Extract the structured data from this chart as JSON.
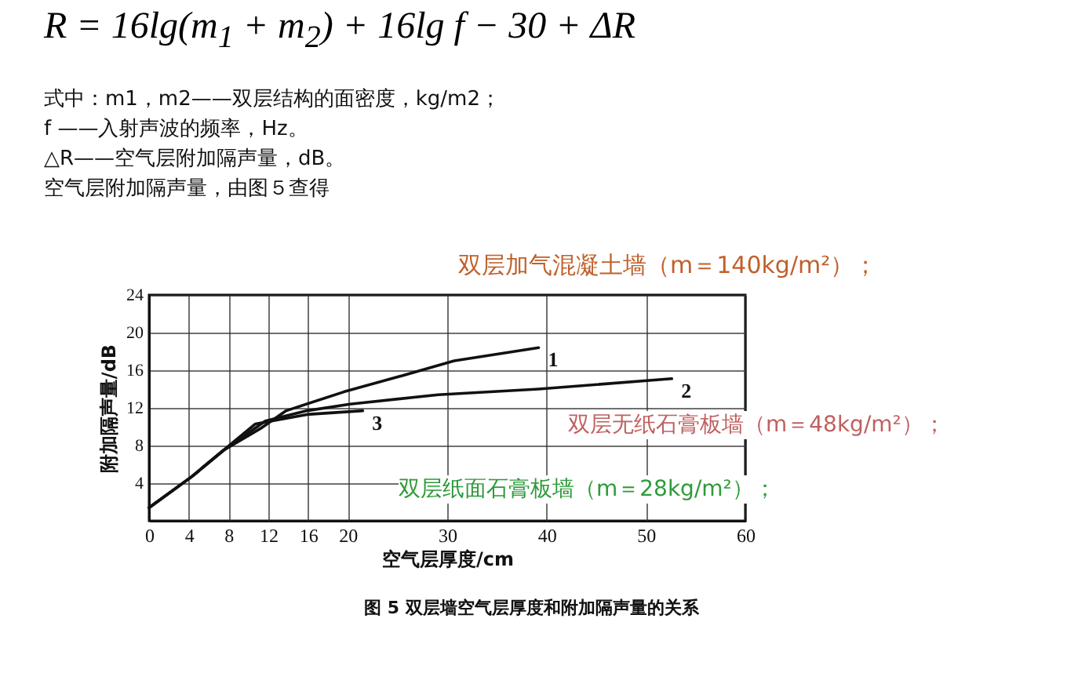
{
  "chart_data": {
    "type": "line",
    "title": "R = 16lg(m$_{1}$ + m$_{2}$) + 16lg f − 30 + ΔR",
    "xlabel": "空气层厚度/cm",
    "ylabel": "附加隔声量/dB",
    "annotations": [
      "式中：m1，m2——双层结构的面密度，kg/m2；",
      "f ——入射声波的频率，Hz。",
      "△R——空气层附加隔声量，dB。",
      "空气层附加隔声量，由图５查得",
      "双层加气混凝土墙（m＝140kg/m²）；",
      "双层无纸石膏板墙（m＝48kg/m²）；",
      "双层纸面石膏板墙（m＝28kg/m²）；",
      "图 5  双层墙空气层厚度和附加隔声量的关系"
    ],
    "series": [
      {
        "name": "1",
        "color": "#111111",
        "x": [
          0,
          4.3,
          7.5,
          11.2,
          13.8,
          19.6,
          25.4,
          30.7,
          39.2
        ],
        "values": [
          1.4,
          4.7,
          7.5,
          9.8,
          11.7,
          13.7,
          15.4,
          17.0,
          18.4
        ]
      },
      {
        "name": "2",
        "color": "#111111",
        "x": [
          0,
          4.3,
          7.5,
          11.7,
          15.9,
          20.2,
          29.1,
          39.2,
          52.6
        ],
        "values": [
          1.4,
          4.7,
          7.5,
          10.6,
          11.7,
          12.4,
          13.4,
          14.0,
          15.1
        ]
      },
      {
        "name": "3",
        "color": "#111111",
        "x": [
          0,
          4.3,
          7.5,
          10.7,
          15.9,
          21.5
        ],
        "values": [
          1.4,
          4.7,
          7.5,
          10.3,
          11.3,
          11.7
        ]
      }
    ],
    "xlim": [
      0,
      60
    ],
    "xticks": [
      0,
      4,
      8,
      12,
      16,
      20,
      30,
      40,
      50,
      60
    ],
    "ylim": [
      0,
      24
    ],
    "yticks": [
      4,
      8,
      12,
      16,
      20,
      24
    ],
    "grid": true,
    "marker": "none",
    "line_style": "solid"
  }
}
